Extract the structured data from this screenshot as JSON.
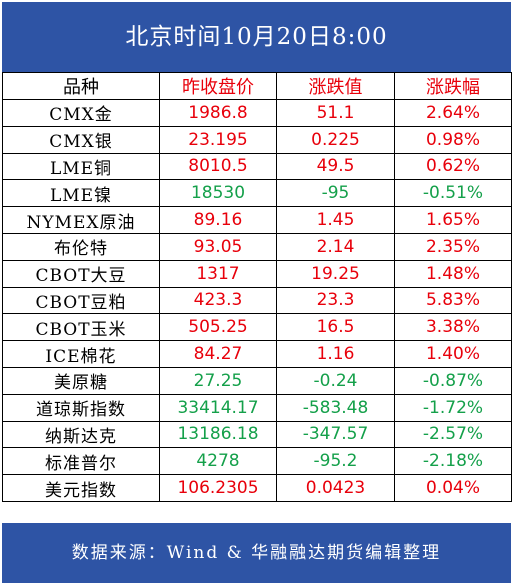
{
  "title": "北京时间10月20日8:00",
  "colors": {
    "frame_blue": "#2e54a5",
    "up_red": "#e8000b",
    "down_green": "#14a04a",
    "text_black": "#000000"
  },
  "table": {
    "headers": [
      "品种",
      "昨收盘价",
      "涨跌值",
      "涨跌幅"
    ],
    "rows": [
      {
        "name": "CMX金",
        "close": "1986.8",
        "change": "51.1",
        "pct": "2.64%",
        "dir": "up"
      },
      {
        "name": "CMX银",
        "close": "23.195",
        "change": "0.225",
        "pct": "0.98%",
        "dir": "up"
      },
      {
        "name": "LME铜",
        "close": "8010.5",
        "change": "49.5",
        "pct": "0.62%",
        "dir": "up"
      },
      {
        "name": "LME镍",
        "close": "18530",
        "change": "-95",
        "pct": "-0.51%",
        "dir": "down"
      },
      {
        "name": "NYMEX原油",
        "close": "89.16",
        "change": "1.45",
        "pct": "1.65%",
        "dir": "up"
      },
      {
        "name": "布伦特",
        "close": "93.05",
        "change": "2.14",
        "pct": "2.35%",
        "dir": "up"
      },
      {
        "name": "CBOT大豆",
        "close": "1317",
        "change": "19.25",
        "pct": "1.48%",
        "dir": "up"
      },
      {
        "name": "CBOT豆粕",
        "close": "423.3",
        "change": "23.3",
        "pct": "5.83%",
        "dir": "up"
      },
      {
        "name": "CBOT玉米",
        "close": "505.25",
        "change": "16.5",
        "pct": "3.38%",
        "dir": "up"
      },
      {
        "name": "ICE棉花",
        "close": "84.27",
        "change": "1.16",
        "pct": "1.40%",
        "dir": "up"
      },
      {
        "name": "美原糖",
        "close": "27.25",
        "change": "-0.24",
        "pct": "-0.87%",
        "dir": "down"
      },
      {
        "name": "道琼斯指数",
        "close": "33414.17",
        "change": "-583.48",
        "pct": "-1.72%",
        "dir": "down"
      },
      {
        "name": "纳斯达克",
        "close": "13186.18",
        "change": "-347.57",
        "pct": "-2.57%",
        "dir": "down"
      },
      {
        "name": "标准普尔",
        "close": "4278",
        "change": "-95.2",
        "pct": "-2.18%",
        "dir": "down"
      },
      {
        "name": "美元指数",
        "close": "106.2305",
        "change": "0.0423",
        "pct": "0.04%",
        "dir": "up"
      }
    ]
  },
  "footer": "数据来源：Wind & 华融融达期货编辑整理"
}
